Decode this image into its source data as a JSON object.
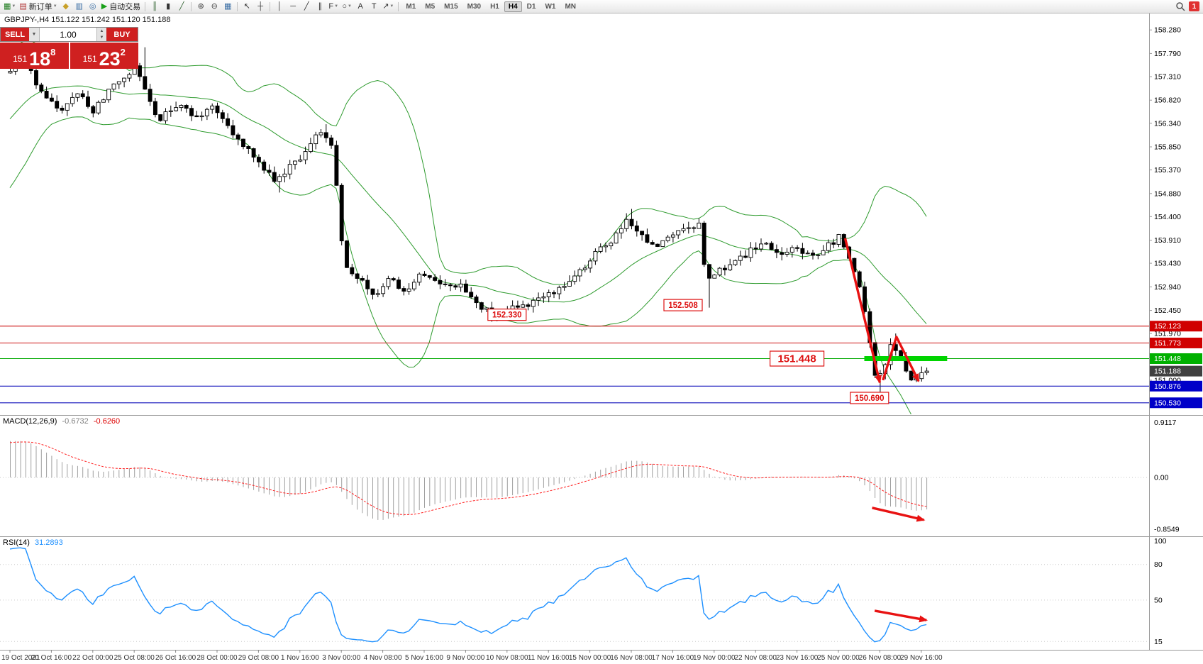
{
  "toolbar": {
    "items": [
      {
        "type": "icon",
        "name": "new-chart-icon",
        "glyph": "▦",
        "color": "#1b7a1b",
        "caret": true
      },
      {
        "type": "button",
        "name": "new-order-button",
        "glyph": "▤",
        "color": "#b03030",
        "label": "新订单",
        "caret": true
      },
      {
        "type": "icon",
        "name": "market-watch-icon",
        "glyph": "◆",
        "color": "#c8a028"
      },
      {
        "type": "icon",
        "name": "data-window-icon",
        "glyph": "▥",
        "color": "#3a6ea5"
      },
      {
        "type": "icon",
        "name": "navigator-icon",
        "glyph": "◎",
        "color": "#3a6ea5"
      },
      {
        "type": "button",
        "name": "autotrade-button",
        "glyph": "▶",
        "color": "#18a018",
        "label": "自动交易"
      },
      {
        "type": "sep"
      },
      {
        "type": "icon",
        "name": "bar-chart-icon",
        "glyph": "║",
        "color": "#356635"
      },
      {
        "type": "icon",
        "name": "candlestick-chart-icon",
        "glyph": "▮",
        "color": "#333333"
      },
      {
        "type": "icon",
        "name": "line-chart-icon",
        "glyph": "╱",
        "color": "#356635"
      },
      {
        "type": "sep"
      },
      {
        "type": "icon",
        "name": "zoom-in-icon",
        "glyph": "⊕",
        "color": "#444444"
      },
      {
        "type": "icon",
        "name": "zoom-out-icon",
        "glyph": "⊖",
        "color": "#444444"
      },
      {
        "type": "icon",
        "name": "tile-windows-icon",
        "glyph": "▦",
        "color": "#3a6ea5"
      },
      {
        "type": "sep"
      },
      {
        "type": "icon",
        "name": "cursor-icon",
        "glyph": "↖",
        "color": "#333333"
      },
      {
        "type": "icon",
        "name": "crosshair-icon",
        "glyph": "┼",
        "color": "#333333"
      },
      {
        "type": "sep"
      },
      {
        "type": "icon",
        "name": "vertical-line-icon",
        "glyph": "│",
        "color": "#333333"
      },
      {
        "type": "icon",
        "name": "horizontal-line-icon",
        "glyph": "─",
        "color": "#333333"
      },
      {
        "type": "icon",
        "name": "trendline-icon",
        "glyph": "╱",
        "color": "#333333"
      },
      {
        "type": "icon",
        "name": "channel-icon",
        "glyph": "∥",
        "color": "#333333"
      },
      {
        "type": "icon",
        "name": "fibonacci-icon",
        "glyph": "F",
        "color": "#333333",
        "caret": true
      },
      {
        "type": "icon",
        "name": "shapes-icon",
        "glyph": "○",
        "color": "#333333",
        "caret": true
      },
      {
        "type": "icon",
        "name": "text-icon",
        "glyph": "A",
        "color": "#333333"
      },
      {
        "type": "icon",
        "name": "label-icon",
        "glyph": "T",
        "color": "#333333"
      },
      {
        "type": "icon",
        "name": "arrows-icon",
        "glyph": "↗",
        "color": "#333333",
        "caret": true
      },
      {
        "type": "sep"
      }
    ],
    "timeframes": [
      "M1",
      "M5",
      "M15",
      "M30",
      "H1",
      "H4",
      "D1",
      "W1",
      "MN"
    ],
    "active_timeframe": "H4",
    "notification_badge": "1"
  },
  "one_click": {
    "sell_label": "SELL",
    "buy_label": "BUY",
    "lot_value": "1.00",
    "sell_prefix": "151",
    "sell_main": "18",
    "sell_sup": "8",
    "buy_prefix": "151",
    "buy_main": "23",
    "buy_sup": "2"
  },
  "chart": {
    "ohlc_header": "GBPJPY-,H4  151.122 151.242 151.120 151.188",
    "price_scale_ticks": [
      "158.280",
      "157.790",
      "157.310",
      "156.820",
      "156.340",
      "155.850",
      "155.370",
      "154.880",
      "154.400",
      "153.910",
      "153.430",
      "152.940",
      "152.450",
      "151.970",
      "151.000"
    ],
    "price_tags": [
      {
        "text": "152.123",
        "bg": "#d00000"
      },
      {
        "text": "151.773",
        "bg": "#d00000"
      },
      {
        "text": "151.448",
        "bg": "#00b000"
      },
      {
        "text": "151.188",
        "bg": "#404040"
      },
      {
        "text": "150.876",
        "bg": "#0000c8"
      },
      {
        "text": "150.530",
        "bg": "#0000c8"
      }
    ],
    "hlines": [
      {
        "price": 152.123,
        "color": "#cc1111"
      },
      {
        "price": 151.773,
        "color": "#cc1111"
      },
      {
        "price": 151.448,
        "color": "#00aa00"
      },
      {
        "price": 150.876,
        "color": "#1111bb"
      },
      {
        "price": 150.53,
        "color": "#1111bb"
      }
    ],
    "green_zone": {
      "price": 151.448,
      "from_bar": 165,
      "to_bar": 181,
      "width": 7,
      "color": "#00d400"
    },
    "callouts": [
      {
        "text": "152.330",
        "bar": 96,
        "price": 152.36,
        "big": false
      },
      {
        "text": "152.508",
        "bar": 130,
        "price": 152.56,
        "big": false
      },
      {
        "text": "151.448",
        "bar": 152,
        "price": 151.448,
        "big": true
      },
      {
        "text": "150.690",
        "bar": 166,
        "price": 150.63,
        "big": false
      }
    ],
    "arrows": [
      {
        "pane": "main",
        "pts": [
          [
            161.3,
            153.95
          ],
          [
            168.0,
            150.95
          ]
        ]
      },
      {
        "pane": "main",
        "pts": [
          [
            168.6,
            151.0
          ],
          [
            171.2,
            151.9
          ],
          [
            175.5,
            150.98
          ]
        ]
      },
      {
        "pane": "macd",
        "pts": [
          [
            166.5,
            -0.5
          ],
          [
            176.5,
            -0.7
          ]
        ]
      },
      {
        "pane": "rsi",
        "pts": [
          [
            167,
            41
          ],
          [
            177,
            33
          ]
        ]
      }
    ],
    "annotation_color": "#e81212"
  },
  "macd_panel": {
    "name": "MACD(12,26,9)",
    "value1": "-0.6732",
    "value2": "-0.6260",
    "scale": [
      "0.9117",
      "0.00",
      "-0.8549"
    ]
  },
  "rsi_panel": {
    "name": "RSI(14)",
    "value": "31.2893",
    "scale": [
      "100",
      "80",
      "50",
      "15"
    ],
    "levels": [
      80,
      50,
      15
    ]
  },
  "time_axis": [
    "19 Oct 2021",
    "20 Oct 16:00",
    "22 Oct 00:00",
    "25 Oct 08:00",
    "26 Oct 16:00",
    "28 Oct 00:00",
    "29 Oct 08:00",
    "1 Nov 16:00",
    "3 Nov 00:00",
    "4 Nov 08:00",
    "5 Nov 16:00",
    "9 Nov 00:00",
    "10 Nov 08:00",
    "11 Nov 16:00",
    "15 Nov 00:00",
    "16 Nov 08:00",
    "17 Nov 16:00",
    "19 Nov 00:00",
    "22 Nov 08:00",
    "23 Nov 16:00",
    "25 Nov 00:00",
    "26 Nov 08:00",
    "29 Nov 16:00"
  ],
  "chart_data": {
    "type": "candlestick",
    "symbol": "GBPJPY-",
    "timeframe": "H4",
    "title": "GBPJPY-,H4",
    "current_bar": {
      "open": 151.122,
      "high": 151.242,
      "low": 151.12,
      "close": 151.188
    },
    "bars": 178,
    "y_axis": {
      "min": 150.32,
      "max": 158.46
    },
    "price_anchors": [
      [
        0,
        157.35
      ],
      [
        3,
        157.75
      ],
      [
        6,
        157.1
      ],
      [
        10,
        156.55
      ],
      [
        13,
        157.0
      ],
      [
        17,
        156.6
      ],
      [
        21,
        157.15
      ],
      [
        25,
        157.55
      ],
      [
        29,
        156.4
      ],
      [
        33,
        156.75
      ],
      [
        37,
        156.45
      ],
      [
        40,
        156.7
      ],
      [
        44,
        156.1
      ],
      [
        48,
        155.6
      ],
      [
        52,
        155.15
      ],
      [
        56,
        155.55
      ],
      [
        59,
        155.95
      ],
      [
        61,
        156.2
      ],
      [
        63,
        155.85
      ],
      [
        65,
        153.5
      ],
      [
        68,
        153.1
      ],
      [
        71,
        152.8
      ],
      [
        74,
        153.1
      ],
      [
        77,
        152.75
      ],
      [
        80,
        153.25
      ],
      [
        84,
        152.9
      ],
      [
        87,
        153.0
      ],
      [
        90,
        152.7
      ],
      [
        93,
        152.4
      ],
      [
        95,
        152.38
      ],
      [
        98,
        152.6
      ],
      [
        101,
        152.55
      ],
      [
        104,
        152.75
      ],
      [
        107,
        152.95
      ],
      [
        110,
        153.2
      ],
      [
        113,
        153.55
      ],
      [
        117,
        153.95
      ],
      [
        120,
        154.3
      ],
      [
        122,
        154.05
      ],
      [
        125,
        153.75
      ],
      [
        128,
        154.0
      ],
      [
        131,
        154.1
      ],
      [
        134,
        154.25
      ],
      [
        135,
        153.05
      ],
      [
        137,
        153.2
      ],
      [
        140,
        153.45
      ],
      [
        143,
        153.65
      ],
      [
        146,
        153.85
      ],
      [
        149,
        153.6
      ],
      [
        152,
        153.8
      ],
      [
        155,
        153.55
      ],
      [
        158,
        153.75
      ],
      [
        161,
        153.98
      ],
      [
        164,
        153.25
      ],
      [
        166,
        152.2
      ],
      [
        167,
        151.5
      ],
      [
        168,
        150.85
      ],
      [
        170,
        151.45
      ],
      [
        171,
        151.8
      ],
      [
        173,
        151.35
      ],
      [
        175,
        150.95
      ],
      [
        176,
        151.05
      ],
      [
        177,
        151.19
      ]
    ],
    "pre_anchors": [
      [
        -30,
        153.5
      ],
      [
        -20,
        154.9
      ],
      [
        -10,
        156.4
      ],
      [
        -4,
        157.1
      ],
      [
        0,
        157.35
      ]
    ],
    "pins": [
      [
        2,
        "h",
        157.98
      ],
      [
        26,
        "h",
        157.92
      ],
      [
        52,
        "l",
        154.9
      ],
      [
        61,
        "h",
        156.32
      ],
      [
        65,
        "l",
        153.33
      ],
      [
        95,
        "l",
        152.33
      ],
      [
        120,
        "h",
        154.56
      ],
      [
        135,
        "l",
        152.508
      ],
      [
        161,
        "h",
        154.05
      ],
      [
        168,
        "l",
        150.69
      ],
      [
        171,
        "h",
        151.97
      ],
      [
        177,
        "c",
        151.188
      ]
    ],
    "indicators": {
      "bollinger": {
        "period": 20,
        "deviation": 2
      },
      "macd": {
        "fast": 12,
        "slow": 26,
        "signal": 9,
        "current_values": [
          -0.6732,
          -0.626
        ]
      },
      "rsi": {
        "period": 14,
        "current_value": 31.2893
      }
    },
    "levels": {
      "resistance": [
        152.123,
        151.773
      ],
      "zone": 151.448,
      "support": [
        150.876,
        150.69,
        150.53
      ],
      "swing_labels": [
        152.33,
        152.508,
        151.448,
        150.69
      ]
    }
  }
}
